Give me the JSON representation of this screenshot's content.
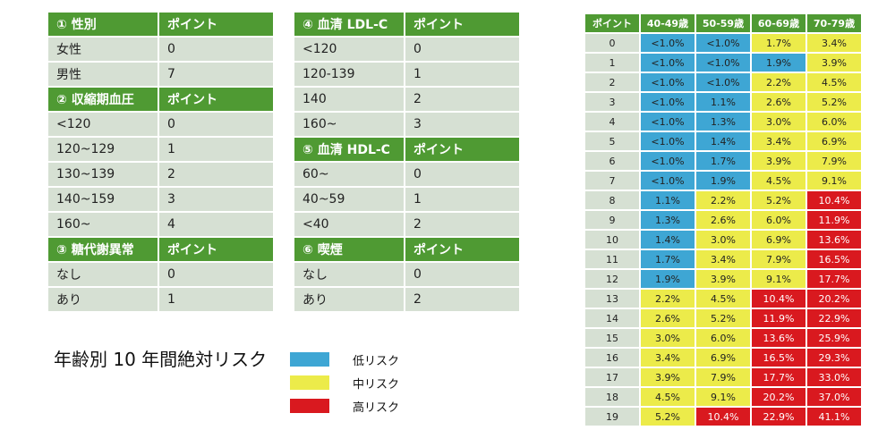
{
  "colors": {
    "header": "#4f9a33",
    "row": "#d6e0d3",
    "low": "#3ea6d4",
    "mid": "#eceb4a",
    "high": "#d9191f"
  },
  "tables": [
    {
      "sections": [
        {
          "header": [
            "① 性別",
            "ポイント"
          ],
          "rows": [
            [
              "女性",
              "0"
            ],
            [
              "男性",
              "7"
            ]
          ]
        },
        {
          "header": [
            "② 収縮期血圧",
            "ポイント"
          ],
          "rows": [
            [
              "<120",
              "0"
            ],
            [
              "120~129",
              "1"
            ],
            [
              "130~139",
              "2"
            ],
            [
              "140~159",
              "3"
            ],
            [
              "160~",
              "4"
            ]
          ]
        },
        {
          "header": [
            "③ 糖代謝異常",
            "ポイント"
          ],
          "rows": [
            [
              "なし",
              "0"
            ],
            [
              "あり",
              "1"
            ]
          ]
        }
      ]
    },
    {
      "sections": [
        {
          "header": [
            "④ 血清 LDL-C",
            "ポイント"
          ],
          "rows": [
            [
              "<120",
              "0"
            ],
            [
              "120-139",
              "1"
            ],
            [
              "140",
              "2"
            ],
            [
              "160~",
              "3"
            ]
          ]
        },
        {
          "header": [
            "⑤ 血清 HDL-C",
            "ポイント"
          ],
          "rows": [
            [
              "60~",
              "0"
            ],
            [
              "40~59",
              "1"
            ],
            [
              "<40",
              "2"
            ]
          ]
        },
        {
          "header": [
            "⑥ 喫煙",
            "ポイント"
          ],
          "rows": [
            [
              "なし",
              "0"
            ],
            [
              "あり",
              "2"
            ]
          ]
        }
      ]
    }
  ],
  "risk_table": {
    "header": [
      "ポイント",
      "40-49歳",
      "50-59歳",
      "60-69歳",
      "70-79歳"
    ],
    "rows": [
      [
        "0",
        "<1.0%",
        "<1.0%",
        "1.7%",
        "3.4%"
      ],
      [
        "1",
        "<1.0%",
        "<1.0%",
        "1.9%",
        "3.9%"
      ],
      [
        "2",
        "<1.0%",
        "<1.0%",
        "2.2%",
        "4.5%"
      ],
      [
        "3",
        "<1.0%",
        "1.1%",
        "2.6%",
        "5.2%"
      ],
      [
        "4",
        "<1.0%",
        "1.3%",
        "3.0%",
        "6.0%"
      ],
      [
        "5",
        "<1.0%",
        "1.4%",
        "3.4%",
        "6.9%"
      ],
      [
        "6",
        "<1.0%",
        "1.7%",
        "3.9%",
        "7.9%"
      ],
      [
        "7",
        "<1.0%",
        "1.9%",
        "4.5%",
        "9.1%"
      ],
      [
        "8",
        "1.1%",
        "2.2%",
        "5.2%",
        "10.4%"
      ],
      [
        "9",
        "1.3%",
        "2.6%",
        "6.0%",
        "11.9%"
      ],
      [
        "10",
        "1.4%",
        "3.0%",
        "6.9%",
        "13.6%"
      ],
      [
        "11",
        "1.7%",
        "3.4%",
        "7.9%",
        "16.5%"
      ],
      [
        "12",
        "1.9%",
        "3.9%",
        "9.1%",
        "17.7%"
      ],
      [
        "13",
        "2.2%",
        "4.5%",
        "10.4%",
        "20.2%"
      ],
      [
        "14",
        "2.6%",
        "5.2%",
        "11.9%",
        "22.9%"
      ],
      [
        "15",
        "3.0%",
        "6.0%",
        "13.6%",
        "25.9%"
      ],
      [
        "16",
        "3.4%",
        "6.9%",
        "16.5%",
        "29.3%"
      ],
      [
        "17",
        "3.9%",
        "7.9%",
        "17.7%",
        "33.0%"
      ],
      [
        "18",
        "4.5%",
        "9.1%",
        "20.2%",
        "37.0%"
      ],
      [
        "19",
        "5.2%",
        "10.4%",
        "22.9%",
        "41.1%"
      ]
    ],
    "levels": [
      [
        "low",
        "low",
        "mid",
        "mid"
      ],
      [
        "low",
        "low",
        "low",
        "mid"
      ],
      [
        "low",
        "low",
        "mid",
        "mid"
      ],
      [
        "low",
        "low",
        "mid",
        "mid"
      ],
      [
        "low",
        "low",
        "mid",
        "mid"
      ],
      [
        "low",
        "low",
        "mid",
        "mid"
      ],
      [
        "low",
        "low",
        "mid",
        "mid"
      ],
      [
        "low",
        "low",
        "mid",
        "mid"
      ],
      [
        "low",
        "mid",
        "mid",
        "high"
      ],
      [
        "low",
        "mid",
        "mid",
        "high"
      ],
      [
        "low",
        "mid",
        "mid",
        "high"
      ],
      [
        "low",
        "mid",
        "mid",
        "high"
      ],
      [
        "low",
        "mid",
        "mid",
        "high"
      ],
      [
        "mid",
        "mid",
        "high",
        "high"
      ],
      [
        "mid",
        "mid",
        "high",
        "high"
      ],
      [
        "mid",
        "mid",
        "high",
        "high"
      ],
      [
        "mid",
        "mid",
        "high",
        "high"
      ],
      [
        "mid",
        "mid",
        "high",
        "high"
      ],
      [
        "mid",
        "mid",
        "high",
        "high"
      ],
      [
        "mid",
        "high",
        "high",
        "high"
      ]
    ]
  },
  "chart_title": "年齢別 10 年間絶対リスク",
  "legend": [
    {
      "label": "低リスク",
      "level": "low"
    },
    {
      "label": "中リスク",
      "level": "mid"
    },
    {
      "label": "高リスク",
      "level": "high"
    }
  ]
}
